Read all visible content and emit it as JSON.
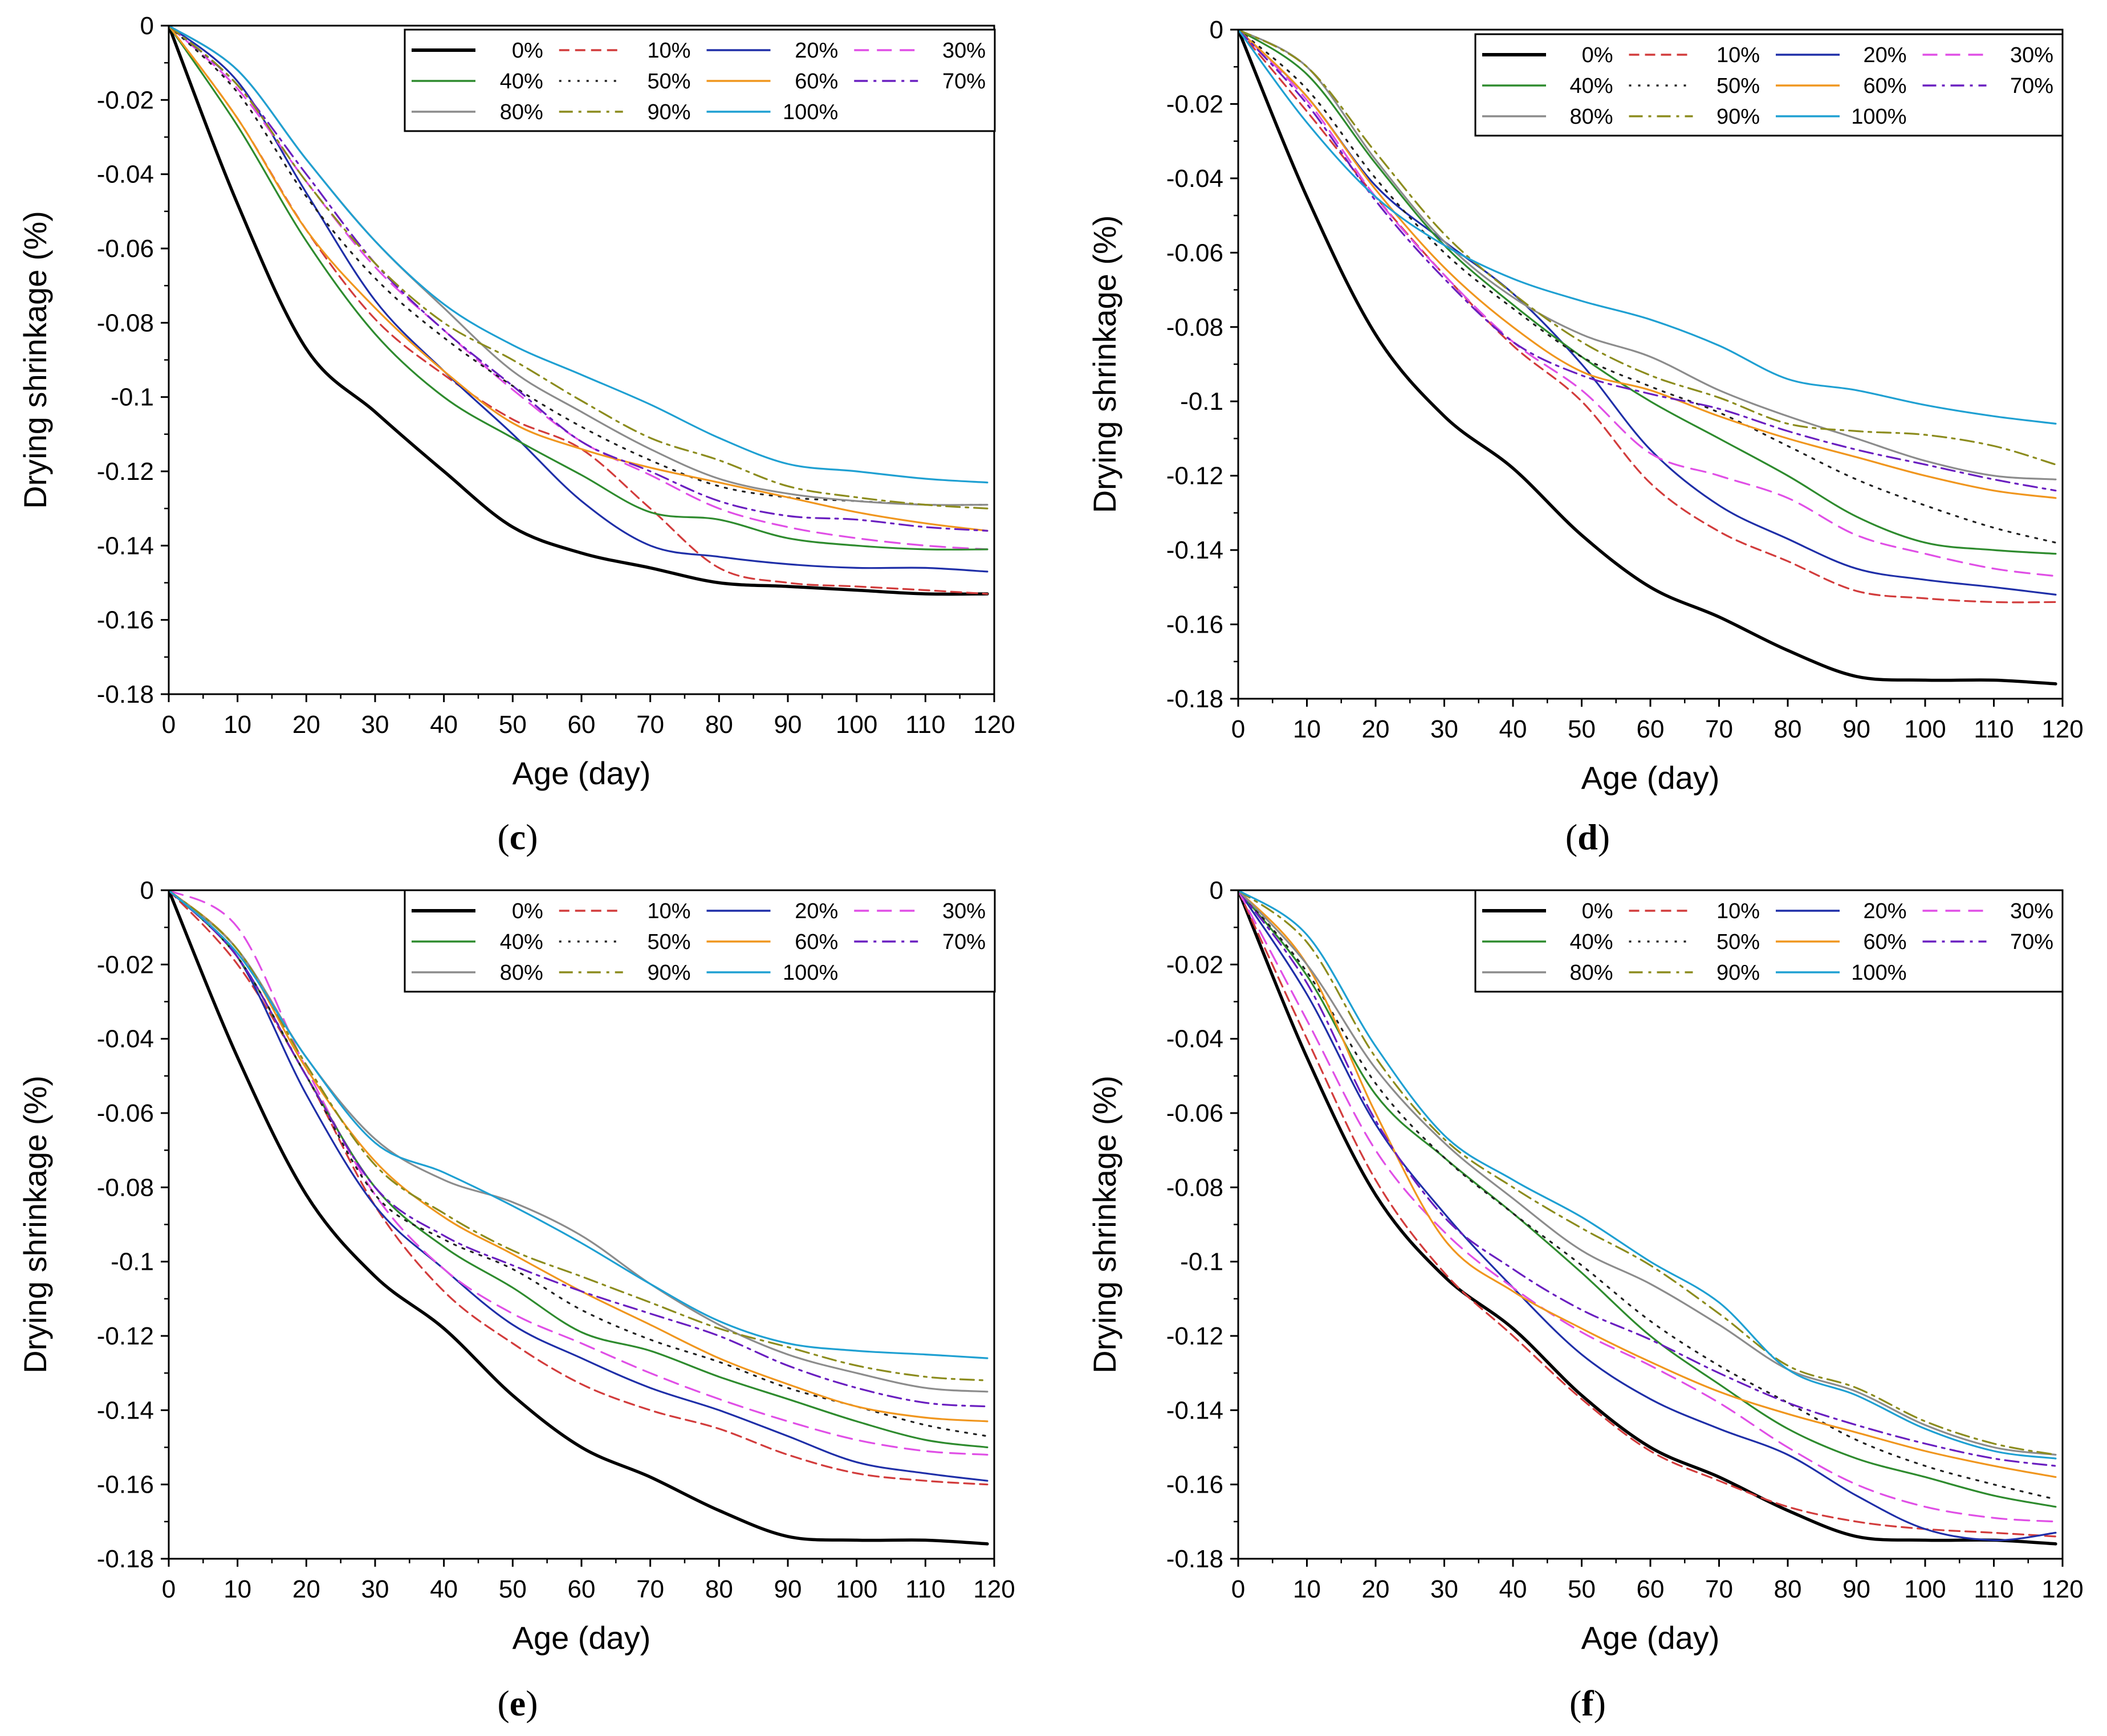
{
  "figure_name": "drying-shrinkage-panels",
  "chart_data": [
    {
      "type": "line",
      "panel": "c",
      "caption_left": "(",
      "caption_letter": "c",
      "caption_right": ")",
      "xlabel": "Age (day)",
      "ylabel": "Drying shrinkage (%)",
      "xlim": [
        0,
        120
      ],
      "ylim": [
        -0.18,
        0
      ],
      "x_ticks": [
        "0",
        "10",
        "20",
        "30",
        "40",
        "50",
        "60",
        "70",
        "80",
        "90",
        "100",
        "110",
        "120"
      ],
      "y_ticks": [
        "0",
        "-0.02",
        "-0.04",
        "-0.06",
        "-0.08",
        "-0.1",
        "-0.12",
        "-0.14",
        "-0.16",
        "-0.18"
      ],
      "x": [
        0,
        10,
        20,
        30,
        40,
        50,
        60,
        70,
        80,
        90,
        100,
        110,
        119
      ],
      "series": [
        {
          "name": "0%",
          "values": [
            0,
            -0.048,
            -0.087,
            -0.104,
            -0.12,
            -0.135,
            -0.142,
            -0.146,
            -0.15,
            -0.151,
            -0.152,
            -0.153,
            -0.153
          ]
        },
        {
          "name": "10%",
          "values": [
            0,
            -0.025,
            -0.055,
            -0.079,
            -0.094,
            -0.106,
            -0.114,
            -0.13,
            -0.146,
            -0.15,
            -0.151,
            -0.152,
            -0.153
          ]
        },
        {
          "name": "20%",
          "values": [
            0,
            -0.015,
            -0.045,
            -0.074,
            -0.093,
            -0.11,
            -0.128,
            -0.14,
            -0.143,
            -0.145,
            -0.146,
            -0.146,
            -0.147
          ]
        },
        {
          "name": "30%",
          "values": [
            0,
            -0.017,
            -0.042,
            -0.065,
            -0.082,
            -0.098,
            -0.112,
            -0.121,
            -0.13,
            -0.135,
            -0.138,
            -0.14,
            -0.141
          ]
        },
        {
          "name": "40%",
          "values": [
            0,
            -0.027,
            -0.058,
            -0.083,
            -0.1,
            -0.111,
            -0.121,
            -0.131,
            -0.133,
            -0.138,
            -0.14,
            -0.141,
            -0.141
          ]
        },
        {
          "name": "50%",
          "values": [
            0,
            -0.018,
            -0.046,
            -0.068,
            -0.084,
            -0.097,
            -0.108,
            -0.117,
            -0.124,
            -0.127,
            -0.128,
            -0.129,
            -0.129
          ]
        },
        {
          "name": "60%",
          "values": [
            0,
            -0.025,
            -0.055,
            -0.076,
            -0.093,
            -0.107,
            -0.114,
            -0.119,
            -0.123,
            -0.127,
            -0.131,
            -0.134,
            -0.136
          ]
        },
        {
          "name": "70%",
          "values": [
            0,
            -0.016,
            -0.04,
            -0.064,
            -0.082,
            -0.097,
            -0.112,
            -0.12,
            -0.128,
            -0.132,
            -0.133,
            -0.135,
            -0.136
          ]
        },
        {
          "name": "80%",
          "values": [
            0,
            -0.012,
            -0.036,
            -0.058,
            -0.076,
            -0.093,
            -0.104,
            -0.114,
            -0.122,
            -0.126,
            -0.128,
            -0.129,
            -0.129
          ]
        },
        {
          "name": "90%",
          "values": [
            0,
            -0.016,
            -0.042,
            -0.064,
            -0.08,
            -0.09,
            -0.101,
            -0.111,
            -0.117,
            -0.124,
            -0.127,
            -0.129,
            -0.13
          ]
        },
        {
          "name": "100%",
          "values": [
            0,
            -0.012,
            -0.036,
            -0.058,
            -0.075,
            -0.086,
            -0.094,
            -0.102,
            -0.111,
            -0.118,
            -0.12,
            -0.122,
            -0.123
          ]
        }
      ]
    },
    {
      "type": "line",
      "panel": "d",
      "caption_left": "(",
      "caption_letter": "d",
      "caption_right": ")",
      "xlabel": "Age (day)",
      "ylabel": "Drying shrinkage (%)",
      "xlim": [
        0,
        120
      ],
      "ylim": [
        -0.18,
        0
      ],
      "x_ticks": [
        "0",
        "10",
        "20",
        "30",
        "40",
        "50",
        "60",
        "70",
        "80",
        "90",
        "100",
        "110",
        "120"
      ],
      "y_ticks": [
        "0",
        "-0.02",
        "-0.04",
        "-0.06",
        "-0.08",
        "-0.1",
        "-0.12",
        "-0.14",
        "-0.16",
        "-0.18"
      ],
      "x": [
        0,
        10,
        20,
        30,
        40,
        50,
        60,
        70,
        80,
        90,
        100,
        110,
        119
      ],
      "series": [
        {
          "name": "0%",
          "values": [
            0,
            -0.045,
            -0.082,
            -0.104,
            -0.118,
            -0.136,
            -0.15,
            -0.158,
            -0.167,
            -0.174,
            -0.175,
            -0.175,
            -0.176
          ]
        },
        {
          "name": "10%",
          "values": [
            0,
            -0.022,
            -0.045,
            -0.066,
            -0.085,
            -0.1,
            -0.122,
            -0.135,
            -0.143,
            -0.151,
            -0.153,
            -0.154,
            -0.154
          ]
        },
        {
          "name": "20%",
          "values": [
            0,
            -0.018,
            -0.042,
            -0.057,
            -0.071,
            -0.09,
            -0.113,
            -0.128,
            -0.137,
            -0.145,
            -0.148,
            -0.15,
            -0.152
          ]
        },
        {
          "name": "30%",
          "values": [
            0,
            -0.019,
            -0.045,
            -0.066,
            -0.084,
            -0.097,
            -0.114,
            -0.12,
            -0.126,
            -0.136,
            -0.141,
            -0.145,
            -0.147
          ]
        },
        {
          "name": "40%",
          "values": [
            0,
            -0.012,
            -0.036,
            -0.058,
            -0.074,
            -0.088,
            -0.1,
            -0.11,
            -0.12,
            -0.131,
            -0.138,
            -0.14,
            -0.141
          ]
        },
        {
          "name": "50%",
          "values": [
            0,
            -0.016,
            -0.04,
            -0.06,
            -0.075,
            -0.088,
            -0.096,
            -0.103,
            -0.112,
            -0.121,
            -0.128,
            -0.134,
            -0.138
          ]
        },
        {
          "name": "60%",
          "values": [
            0,
            -0.018,
            -0.043,
            -0.064,
            -0.08,
            -0.092,
            -0.097,
            -0.104,
            -0.11,
            -0.115,
            -0.12,
            -0.124,
            -0.126
          ]
        },
        {
          "name": "70%",
          "values": [
            0,
            -0.02,
            -0.046,
            -0.067,
            -0.084,
            -0.093,
            -0.098,
            -0.102,
            -0.108,
            -0.113,
            -0.117,
            -0.121,
            -0.124
          ]
        },
        {
          "name": "80%",
          "values": [
            0,
            -0.01,
            -0.035,
            -0.057,
            -0.072,
            -0.082,
            -0.088,
            -0.097,
            -0.104,
            -0.11,
            -0.116,
            -0.12,
            -0.121
          ]
        },
        {
          "name": "90%",
          "values": [
            0,
            -0.01,
            -0.033,
            -0.055,
            -0.071,
            -0.084,
            -0.093,
            -0.099,
            -0.106,
            -0.108,
            -0.109,
            -0.112,
            -0.117
          ]
        },
        {
          "name": "100%",
          "values": [
            0,
            -0.025,
            -0.045,
            -0.058,
            -0.067,
            -0.073,
            -0.078,
            -0.085,
            -0.094,
            -0.097,
            -0.101,
            -0.104,
            -0.106
          ]
        }
      ]
    },
    {
      "type": "line",
      "panel": "e",
      "caption_left": "(",
      "caption_letter": "e",
      "caption_right": ")",
      "xlabel": "Age (day)",
      "ylabel": "Drying shrinkage (%)",
      "xlim": [
        0,
        120
      ],
      "ylim": [
        -0.18,
        0
      ],
      "x_ticks": [
        "0",
        "10",
        "20",
        "30",
        "40",
        "50",
        "60",
        "70",
        "80",
        "90",
        "100",
        "110",
        "120"
      ],
      "y_ticks": [
        "0",
        "-0.02",
        "-0.04",
        "-0.06",
        "-0.08",
        "-0.1",
        "-0.12",
        "-0.14",
        "-0.16",
        "-0.18"
      ],
      "x": [
        0,
        10,
        20,
        30,
        40,
        50,
        60,
        70,
        80,
        90,
        100,
        110,
        119
      ],
      "series": [
        {
          "name": "0%",
          "values": [
            0,
            -0.045,
            -0.082,
            -0.104,
            -0.118,
            -0.136,
            -0.15,
            -0.158,
            -0.167,
            -0.174,
            -0.175,
            -0.175,
            -0.176
          ]
        },
        {
          "name": "10%",
          "values": [
            0,
            -0.02,
            -0.05,
            -0.085,
            -0.108,
            -0.122,
            -0.133,
            -0.14,
            -0.145,
            -0.152,
            -0.157,
            -0.159,
            -0.16
          ]
        },
        {
          "name": "20%",
          "values": [
            0,
            -0.018,
            -0.055,
            -0.085,
            -0.102,
            -0.117,
            -0.126,
            -0.134,
            -0.14,
            -0.147,
            -0.154,
            -0.157,
            -0.159
          ]
        },
        {
          "name": "30%",
          "values": [
            0,
            -0.01,
            -0.048,
            -0.082,
            -0.102,
            -0.114,
            -0.122,
            -0.13,
            -0.137,
            -0.143,
            -0.148,
            -0.151,
            -0.152
          ]
        },
        {
          "name": "40%",
          "values": [
            0,
            -0.018,
            -0.05,
            -0.08,
            -0.096,
            -0.107,
            -0.119,
            -0.124,
            -0.131,
            -0.137,
            -0.143,
            -0.148,
            -0.15
          ]
        },
        {
          "name": "50%",
          "values": [
            0,
            -0.018,
            -0.05,
            -0.082,
            -0.094,
            -0.102,
            -0.113,
            -0.121,
            -0.127,
            -0.134,
            -0.139,
            -0.144,
            -0.147
          ]
        },
        {
          "name": "60%",
          "values": [
            0,
            -0.016,
            -0.048,
            -0.073,
            -0.088,
            -0.098,
            -0.108,
            -0.117,
            -0.126,
            -0.133,
            -0.139,
            -0.142,
            -0.143
          ]
        },
        {
          "name": "70%",
          "values": [
            0,
            -0.018,
            -0.05,
            -0.08,
            -0.093,
            -0.101,
            -0.108,
            -0.114,
            -0.12,
            -0.128,
            -0.134,
            -0.138,
            -0.139
          ]
        },
        {
          "name": "80%",
          "values": [
            0,
            -0.016,
            -0.045,
            -0.067,
            -0.078,
            -0.084,
            -0.093,
            -0.106,
            -0.117,
            -0.125,
            -0.13,
            -0.134,
            -0.135
          ]
        },
        {
          "name": "90%",
          "values": [
            0,
            -0.016,
            -0.047,
            -0.074,
            -0.087,
            -0.097,
            -0.104,
            -0.111,
            -0.118,
            -0.123,
            -0.128,
            -0.131,
            -0.132
          ]
        },
        {
          "name": "100%",
          "values": [
            0,
            -0.017,
            -0.045,
            -0.068,
            -0.076,
            -0.085,
            -0.095,
            -0.106,
            -0.116,
            -0.122,
            -0.124,
            -0.125,
            -0.126
          ]
        }
      ]
    },
    {
      "type": "line",
      "panel": "f",
      "caption_left": "(",
      "caption_letter": "f",
      "caption_right": ")",
      "xlabel": "Age (day)",
      "ylabel": "Drying shrinkage (%)",
      "xlim": [
        0,
        120
      ],
      "ylim": [
        -0.18,
        0
      ],
      "x_ticks": [
        "0",
        "10",
        "20",
        "30",
        "40",
        "50",
        "60",
        "70",
        "80",
        "90",
        "100",
        "110",
        "120"
      ],
      "y_ticks": [
        "0",
        "-0.02",
        "-0.04",
        "-0.06",
        "-0.08",
        "-0.1",
        "-0.12",
        "-0.14",
        "-0.16",
        "-0.18"
      ],
      "x": [
        0,
        10,
        20,
        30,
        40,
        50,
        60,
        70,
        80,
        90,
        100,
        110,
        119
      ],
      "series": [
        {
          "name": "0%",
          "values": [
            0,
            -0.045,
            -0.082,
            -0.104,
            -0.118,
            -0.136,
            -0.15,
            -0.158,
            -0.167,
            -0.174,
            -0.175,
            -0.175,
            -0.176
          ]
        },
        {
          "name": "10%",
          "values": [
            0,
            -0.04,
            -0.078,
            -0.103,
            -0.12,
            -0.137,
            -0.151,
            -0.159,
            -0.166,
            -0.17,
            -0.172,
            -0.173,
            -0.174
          ]
        },
        {
          "name": "20%",
          "values": [
            0,
            -0.028,
            -0.063,
            -0.087,
            -0.107,
            -0.125,
            -0.137,
            -0.145,
            -0.152,
            -0.163,
            -0.172,
            -0.175,
            -0.173
          ]
        },
        {
          "name": "30%",
          "values": [
            0,
            -0.035,
            -0.07,
            -0.092,
            -0.107,
            -0.119,
            -0.128,
            -0.138,
            -0.15,
            -0.16,
            -0.166,
            -0.169,
            -0.17
          ]
        },
        {
          "name": "40%",
          "values": [
            0,
            -0.023,
            -0.055,
            -0.072,
            -0.087,
            -0.103,
            -0.12,
            -0.133,
            -0.145,
            -0.153,
            -0.158,
            -0.163,
            -0.166
          ]
        },
        {
          "name": "50%",
          "values": [
            0,
            -0.022,
            -0.052,
            -0.072,
            -0.087,
            -0.101,
            -0.116,
            -0.128,
            -0.138,
            -0.148,
            -0.155,
            -0.16,
            -0.164
          ]
        },
        {
          "name": "60%",
          "values": [
            0,
            -0.02,
            -0.06,
            -0.094,
            -0.108,
            -0.118,
            -0.127,
            -0.135,
            -0.141,
            -0.146,
            -0.151,
            -0.155,
            -0.158
          ]
        },
        {
          "name": "70%",
          "values": [
            0,
            -0.025,
            -0.062,
            -0.088,
            -0.102,
            -0.113,
            -0.121,
            -0.13,
            -0.138,
            -0.144,
            -0.149,
            -0.153,
            -0.155
          ]
        },
        {
          "name": "80%",
          "values": [
            0,
            -0.02,
            -0.048,
            -0.068,
            -0.083,
            -0.097,
            -0.106,
            -0.117,
            -0.129,
            -0.135,
            -0.144,
            -0.15,
            -0.152
          ]
        },
        {
          "name": "90%",
          "values": [
            0,
            -0.014,
            -0.045,
            -0.067,
            -0.08,
            -0.091,
            -0.101,
            -0.114,
            -0.128,
            -0.134,
            -0.143,
            -0.149,
            -0.152
          ]
        },
        {
          "name": "100%",
          "values": [
            0,
            -0.012,
            -0.042,
            -0.066,
            -0.078,
            -0.088,
            -0.1,
            -0.111,
            -0.129,
            -0.136,
            -0.145,
            -0.151,
            -0.153
          ]
        }
      ]
    }
  ],
  "series_styles": [
    {
      "name": "0%",
      "color": "#000000",
      "dash": "solid"
    },
    {
      "name": "10%",
      "color": "#d23c3c",
      "dash": "dash"
    },
    {
      "name": "20%",
      "color": "#1f2fa8",
      "dash": "solid"
    },
    {
      "name": "30%",
      "color": "#e04fe6",
      "dash": "longdash"
    },
    {
      "name": "40%",
      "color": "#2e8b2e",
      "dash": "solid"
    },
    {
      "name": "50%",
      "color": "#222222",
      "dash": "dot"
    },
    {
      "name": "60%",
      "color": "#f0961e",
      "dash": "solid"
    },
    {
      "name": "70%",
      "color": "#6a1fc0",
      "dash": "dashdot"
    },
    {
      "name": "80%",
      "color": "#8c8c8c",
      "dash": "solid"
    },
    {
      "name": "90%",
      "color": "#8c8c1e",
      "dash": "dashdot"
    },
    {
      "name": "100%",
      "color": "#1fa0d2",
      "dash": "solid"
    }
  ]
}
